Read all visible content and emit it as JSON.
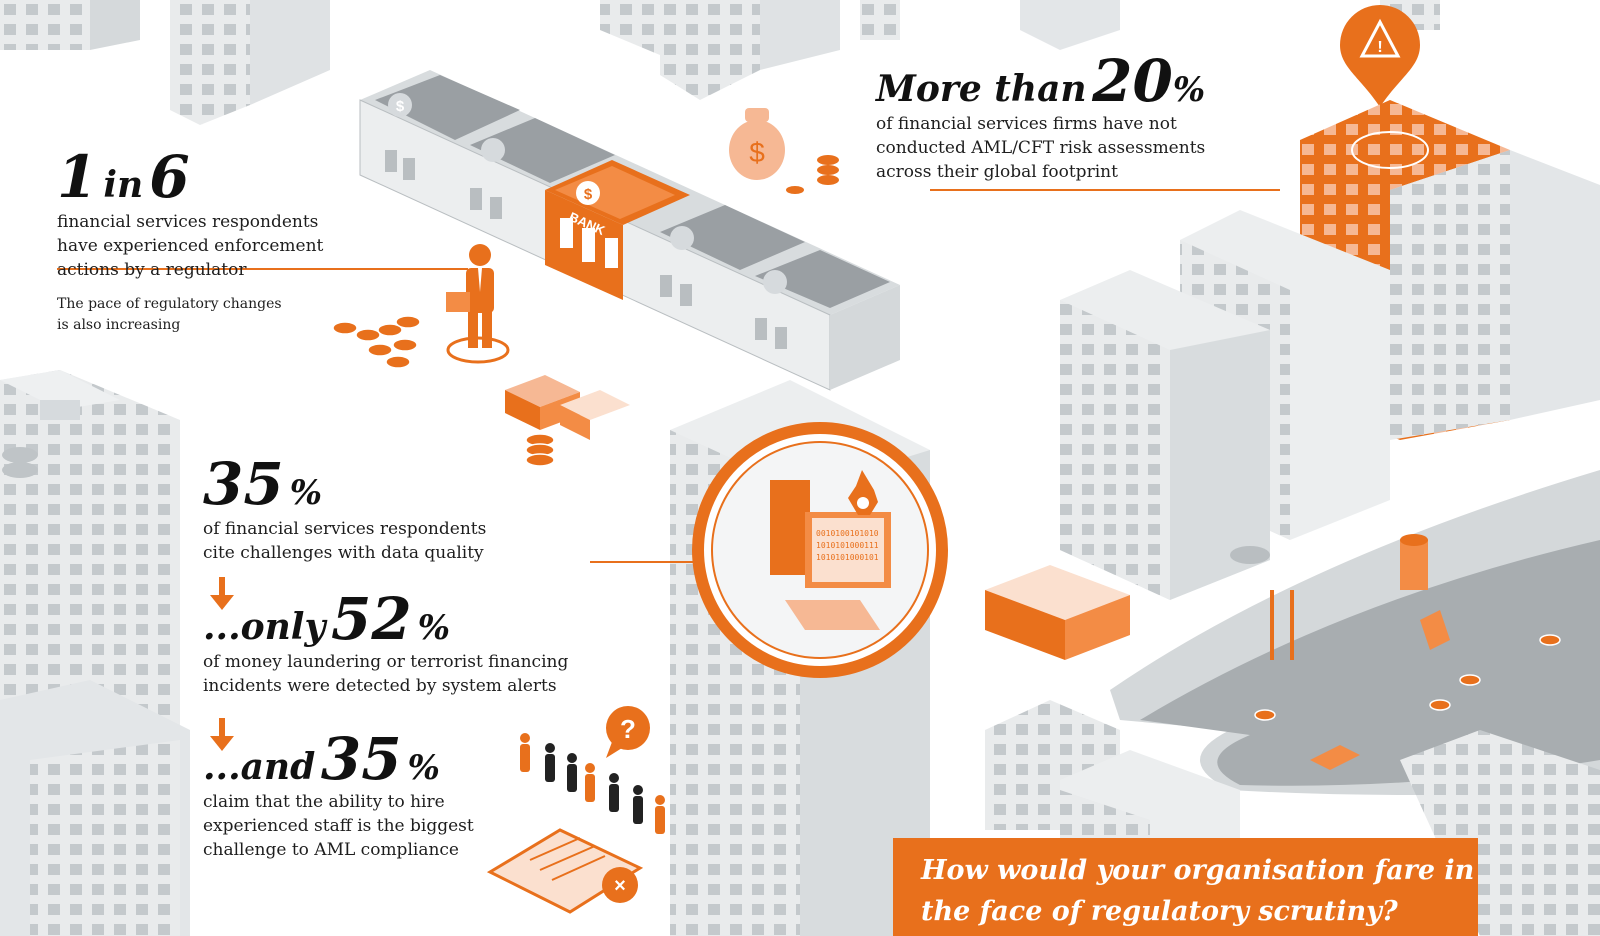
{
  "stats": {
    "one_in_six": {
      "num_a": "1",
      "mid": "in",
      "num_b": "6",
      "description": "financial services respondents\nhave experienced enforcement\nactions by a regulator",
      "note": "The pace of regulatory changes\nis also increasing"
    },
    "more_than_20": {
      "prefix": "More than",
      "number": "20",
      "suffix": "%",
      "description": "of financial services firms have not\nconducted AML/CFT risk assessments\nacross their global footprint"
    },
    "data_quality": {
      "number": "35",
      "suffix": "%",
      "description": "of financial services respondents\ncite challenges with data quality"
    },
    "detected": {
      "prefix": "...only",
      "number": "52",
      "suffix": "%",
      "description": "of money laundering or terrorist financing\nincidents were detected by system alerts"
    },
    "staff": {
      "prefix": "...and",
      "number": "35",
      "suffix": "%",
      "description": "claim that the ability to hire\nexperienced staff is the biggest\nchallenge to AML compliance"
    }
  },
  "illustration": {
    "bank_sign": "BANK",
    "currency_symbol": "$",
    "question_mark": "?",
    "binary_lines": [
      "0010100101010",
      "1010101000111",
      "1010101000101"
    ],
    "accent_color": "#e8701c",
    "building_color": "#e6e8e9",
    "icons": [
      "dollar-icon",
      "warning-icon",
      "globe-icon",
      "question-icon",
      "reject-icon",
      "down-arrow-icon",
      "fire-icon"
    ]
  },
  "cta": {
    "text": "How would your organisation fare in\nthe face of regulatory scrutiny?"
  }
}
